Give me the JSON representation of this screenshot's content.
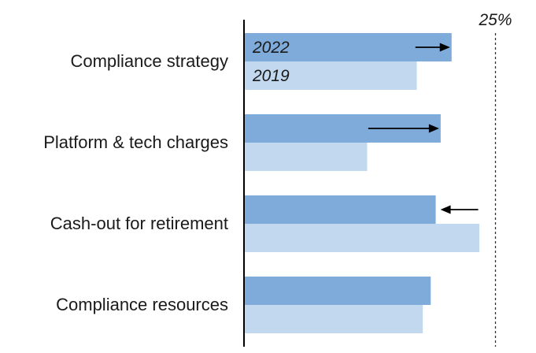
{
  "chart_data": {
    "type": "bar",
    "orientation": "horizontal",
    "categories": [
      "Compliance strategy",
      "Platform & tech charges",
      "Cash-out for retirement",
      "Compliance resources"
    ],
    "series": [
      {
        "name": "2022",
        "color": "#7fabda",
        "values": [
          20.9,
          19.8,
          19.3,
          18.8
        ]
      },
      {
        "name": "2019",
        "color": "#c2d8ef",
        "values": [
          17.4,
          12.4,
          23.7,
          18.0
        ]
      }
    ],
    "reference_line": {
      "value": 25,
      "label": "25%",
      "style": "dashed"
    },
    "xlim": [
      0,
      25.9
    ],
    "arrows": [
      {
        "category": "Compliance strategy",
        "direction": "right"
      },
      {
        "category": "Platform & tech charges",
        "direction": "right"
      },
      {
        "category": "Cash-out for retirement",
        "direction": "left"
      }
    ],
    "series_labels_on_category": "Compliance strategy"
  }
}
